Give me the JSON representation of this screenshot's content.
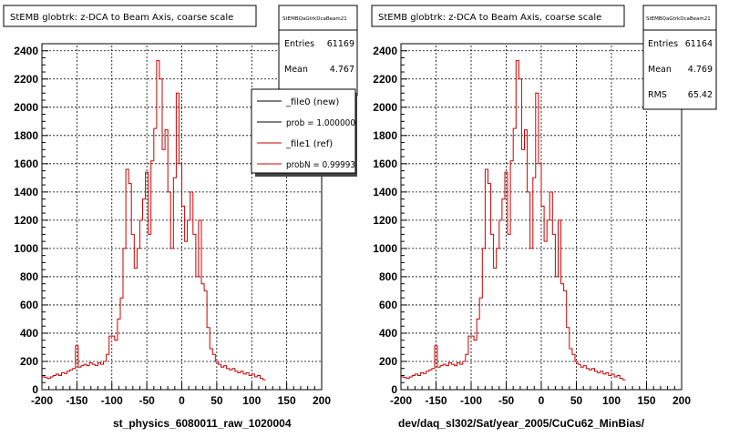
{
  "chart_data": [
    {
      "type": "histogram",
      "title": "StEMB globtrk: z-DCA to Beam Axis, coarse scale",
      "xlabel": "st_physics_6080011_raw_1020004",
      "ylabel": "",
      "xlim": [
        -200,
        200
      ],
      "ylim": [
        0,
        2450
      ],
      "x_ticks": [
        "-200",
        "-150",
        "-100",
        "-50",
        "0",
        "50",
        "100",
        "150",
        "200"
      ],
      "y_ticks": [
        "0",
        "200",
        "400",
        "600",
        "800",
        "1000",
        "1200",
        "1400",
        "1600",
        "1800",
        "2000",
        "2200",
        "2400"
      ],
      "grid": true,
      "bin_edges_start": -200,
      "bin_width": 4,
      "series": [
        {
          "name": "_file1 (ref)",
          "color": "#cc0000",
          "values": [
            90,
            85,
            80,
            90,
            100,
            110,
            100,
            120,
            115,
            130,
            140,
            150,
            310,
            160,
            170,
            180,
            170,
            190,
            180,
            170,
            190,
            180,
            200,
            250,
            380,
            380,
            350,
            500,
            650,
            1000,
            1560,
            1460,
            1100,
            860,
            1000,
            1200,
            1350,
            1540,
            1100,
            1620,
            1850,
            2330,
            2200,
            1700,
            1840,
            1400,
            1000,
            1500,
            2100,
            1600,
            1300,
            1050,
            1200,
            1400,
            1100,
            800,
            1200,
            750,
            700,
            440,
            290,
            250,
            200,
            180,
            160,
            170,
            150,
            140,
            150,
            130,
            120,
            130,
            110,
            120,
            100,
            110,
            90,
            100,
            80,
            70
          ]
        }
      ],
      "stats": {
        "name": "StEMBQaGtrkDcaBeam21",
        "entries_label": "Entries",
        "entries": "61169",
        "mean_label": "Mean",
        "mean": "4.767"
      },
      "legend": {
        "placement": "top-right",
        "entries": [
          {
            "label": "_file0 (new)",
            "color": "#000000"
          },
          {
            "label": "prob = 1.000000",
            "color": "#000000"
          },
          {
            "label": "_file1 (ref)",
            "color": "#cc0000"
          },
          {
            "label": "probN = 0.99993",
            "color": "#cc0000"
          }
        ]
      }
    },
    {
      "type": "histogram",
      "title": "StEMB globtrk: z-DCA to Beam Axis, coarse scale",
      "xlabel": "dev/daq_sl302/Sat/year_2005/CuCu62_MinBias/",
      "ylabel": "",
      "xlim": [
        -200,
        200
      ],
      "ylim": [
        0,
        2450
      ],
      "x_ticks": [
        "-200",
        "-150",
        "-100",
        "-50",
        "0",
        "50",
        "100",
        "150",
        "200"
      ],
      "y_ticks": [
        "0",
        "200",
        "400",
        "600",
        "800",
        "1000",
        "1200",
        "1400",
        "1600",
        "1800",
        "2000",
        "2200",
        "2400"
      ],
      "grid": true,
      "bin_edges_start": -200,
      "bin_width": 4,
      "series": [
        {
          "name": "",
          "color": "#cc0000",
          "values": [
            90,
            85,
            80,
            90,
            100,
            110,
            100,
            120,
            115,
            130,
            140,
            150,
            310,
            160,
            170,
            180,
            170,
            190,
            180,
            170,
            190,
            180,
            200,
            250,
            380,
            380,
            350,
            500,
            650,
            1000,
            1560,
            1460,
            1100,
            860,
            1000,
            1200,
            1350,
            1540,
            1100,
            1620,
            1850,
            2330,
            2200,
            1700,
            1840,
            1400,
            1000,
            1500,
            2100,
            1600,
            1300,
            1050,
            1200,
            1400,
            1100,
            800,
            1200,
            750,
            700,
            440,
            290,
            250,
            200,
            180,
            160,
            170,
            150,
            140,
            150,
            130,
            120,
            130,
            110,
            120,
            100,
            110,
            90,
            100,
            80,
            70
          ]
        }
      ],
      "stats": {
        "name": "StEMBQaGtrkDcaBeam21",
        "entries_label": "Entries",
        "entries": "61164",
        "mean_label": "Mean",
        "mean": "4.769",
        "rms_label": "RMS",
        "rms": "65.42"
      }
    }
  ]
}
